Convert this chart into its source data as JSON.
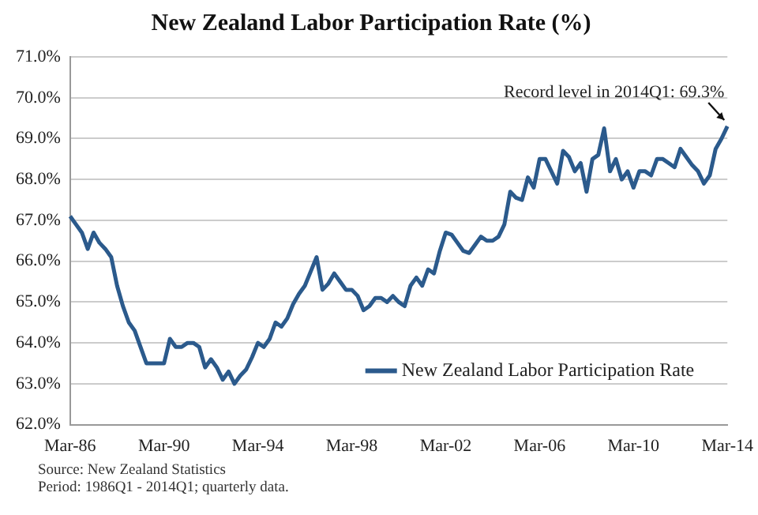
{
  "chart_data": {
    "type": "line",
    "title": "New Zealand Labor Participation Rate (%)",
    "categories": [
      "Mar-86",
      null,
      null,
      null,
      null,
      null,
      null,
      null,
      null,
      null,
      null,
      null,
      null,
      null,
      null,
      null,
      "Mar-90",
      null,
      null,
      null,
      null,
      null,
      null,
      null,
      null,
      null,
      null,
      null,
      null,
      null,
      null,
      null,
      "Mar-94",
      null,
      null,
      null,
      null,
      null,
      null,
      null,
      null,
      null,
      null,
      null,
      null,
      null,
      null,
      null,
      "Mar-98",
      null,
      null,
      null,
      null,
      null,
      null,
      null,
      null,
      null,
      null,
      null,
      null,
      null,
      null,
      null,
      "Mar-02",
      null,
      null,
      null,
      null,
      null,
      null,
      null,
      null,
      null,
      null,
      null,
      null,
      null,
      null,
      null,
      "Mar-06",
      null,
      null,
      null,
      null,
      null,
      null,
      null,
      null,
      null,
      null,
      null,
      null,
      null,
      null,
      null,
      "Mar-10",
      null,
      null,
      null,
      null,
      null,
      null,
      null,
      null,
      null,
      null,
      null,
      null,
      null,
      null,
      null,
      "Mar-14"
    ],
    "series": [
      {
        "name": "New Zealand Labor Participation Rate",
        "color": "#2b5a8c",
        "values": [
          67.1,
          66.9,
          66.7,
          66.3,
          66.7,
          66.45,
          66.3,
          66.1,
          65.4,
          64.9,
          64.5,
          64.3,
          63.9,
          63.5,
          63.5,
          63.5,
          63.5,
          64.1,
          63.9,
          63.9,
          64.0,
          64.0,
          63.9,
          63.4,
          63.6,
          63.4,
          63.1,
          63.3,
          63.0,
          63.2,
          63.35,
          63.65,
          64.0,
          63.9,
          64.1,
          64.5,
          64.4,
          64.6,
          64.95,
          65.2,
          65.4,
          65.75,
          66.1,
          65.3,
          65.45,
          65.7,
          65.5,
          65.3,
          65.3,
          65.15,
          64.8,
          64.9,
          65.1,
          65.1,
          65.0,
          65.15,
          65.0,
          64.9,
          65.4,
          65.6,
          65.4,
          65.8,
          65.7,
          66.25,
          66.7,
          66.65,
          66.45,
          66.25,
          66.2,
          66.4,
          66.6,
          66.5,
          66.5,
          66.6,
          66.9,
          67.7,
          67.55,
          67.5,
          68.05,
          67.8,
          68.5,
          68.5,
          68.2,
          67.9,
          68.7,
          68.55,
          68.2,
          68.4,
          67.7,
          68.5,
          68.6,
          69.25,
          68.2,
          68.5,
          68.0,
          68.2,
          67.8,
          68.2,
          68.2,
          68.1,
          68.5,
          68.5,
          68.4,
          68.3,
          68.75,
          68.55,
          68.35,
          68.2,
          67.9,
          68.1,
          68.75,
          69.0,
          69.3
        ]
      }
    ],
    "ylim": [
      62,
      71
    ],
    "yticks": [
      {
        "value": 62,
        "label": "62.0%"
      },
      {
        "value": 63,
        "label": "63.0%"
      },
      {
        "value": 64,
        "label": "64.0%"
      },
      {
        "value": 65,
        "label": "65.0%"
      },
      {
        "value": 66,
        "label": "66.0%"
      },
      {
        "value": 67,
        "label": "67.0%"
      },
      {
        "value": 68,
        "label": "68.0%"
      },
      {
        "value": 69,
        "label": "69.0%"
      },
      {
        "value": 70,
        "label": "70.0%"
      },
      {
        "value": 71,
        "label": "71.0%"
      }
    ],
    "grid": "y",
    "legend": "bottom right",
    "marker": "none",
    "annotations": [
      {
        "text": "Record level in 2014Q1: 69.3%",
        "x": "Mar-14",
        "y": 69.3
      },
      "Source: New Zealand Statistics",
      "Period: 1986Q1 - 2014Q1; quarterly data."
    ]
  }
}
